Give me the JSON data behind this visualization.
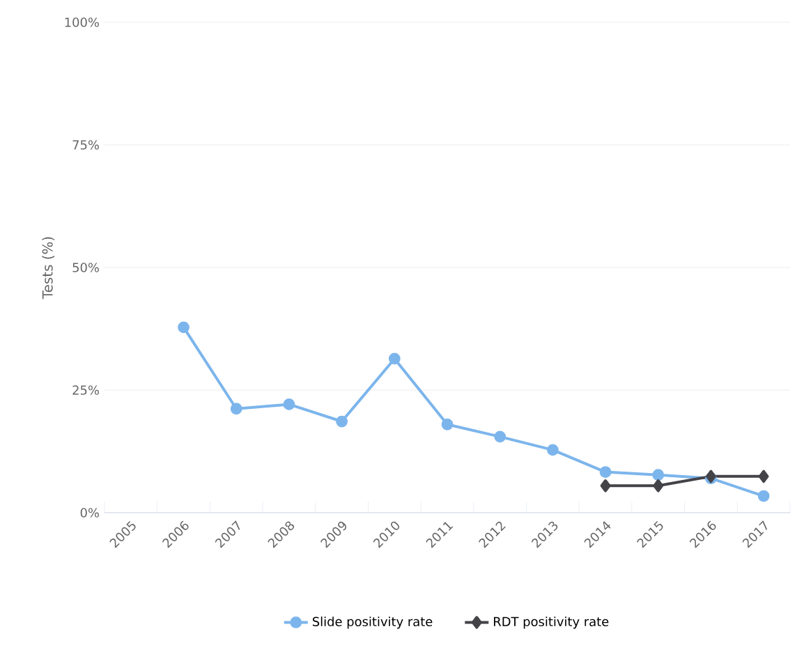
{
  "chart_data": {
    "type": "line",
    "ylabel": "Tests (%)",
    "categories": [
      "2005",
      "2006",
      "2007",
      "2008",
      "2009",
      "2010",
      "2011",
      "2012",
      "2013",
      "2014",
      "2015",
      "2016",
      "2017"
    ],
    "series": [
      {
        "name": "Slide positivity rate",
        "color": "#7cb5ec",
        "marker": "circle",
        "values": [
          null,
          37.8,
          21.2,
          22.1,
          18.6,
          31.4,
          18.0,
          15.5,
          12.8,
          8.3,
          7.7,
          7.0,
          3.4
        ]
      },
      {
        "name": "RDT positivity rate",
        "color": "#434348",
        "marker": "diamond",
        "values": [
          null,
          null,
          null,
          null,
          null,
          null,
          null,
          null,
          null,
          5.5,
          5.5,
          7.4,
          7.4
        ]
      }
    ],
    "ylim": [
      0,
      100
    ],
    "yticks": [
      {
        "value": 0,
        "label": "0%"
      },
      {
        "value": 25,
        "label": "25%"
      },
      {
        "value": 50,
        "label": "50%"
      },
      {
        "value": 75,
        "label": "75%"
      },
      {
        "value": 100,
        "label": "100%"
      }
    ],
    "grid": "y",
    "legend": "bottom"
  }
}
